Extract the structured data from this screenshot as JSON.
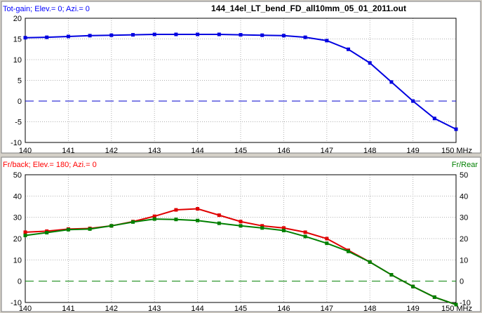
{
  "window": {
    "file_title": "144_14el_LT_bend_FD_all10mm_05_01_2011.out"
  },
  "chart_data": [
    {
      "type": "line",
      "title": "144_14el_LT_bend_FD_all10mm_05_01_2011.out",
      "ylabel": "Tot-gain; Elev.= 0; Azi.= 0",
      "x_unit_label": "150 MHz",
      "xlim": [
        140,
        150
      ],
      "ylim": [
        -10,
        20
      ],
      "x_ticks": [
        "140",
        "141",
        "142",
        "143",
        "144",
        "145",
        "146",
        "147",
        "148",
        "149"
      ],
      "y_ticks": [
        "20",
        "15",
        "10",
        "5",
        "0",
        "-5",
        "-10"
      ],
      "grid": true,
      "zero_line": true,
      "colors": {
        "series": "#0000e0",
        "zero_line": "#0000cc",
        "label": "#0000ff"
      },
      "series": [
        {
          "x": [
            140,
            140.5,
            141,
            141.5,
            142,
            142.5,
            143,
            143.5,
            144,
            144.5,
            145,
            145.5,
            146,
            146.5,
            147,
            147.5,
            148,
            148.5,
            149,
            149.5,
            150
          ],
          "values": [
            15.3,
            15.4,
            15.6,
            15.8,
            15.9,
            16.0,
            16.1,
            16.1,
            16.1,
            16.1,
            16.0,
            15.9,
            15.8,
            15.4,
            14.6,
            12.5,
            9.2,
            4.6,
            0.0,
            -4.2,
            -6.8
          ]
        }
      ]
    },
    {
      "type": "line",
      "ylabel": "Fr/back; Elev.= 180; Azi.= 0",
      "ylabel_right": "Fr/Rear",
      "x_unit_label": "150 MHz",
      "xlim": [
        140,
        150
      ],
      "ylim": [
        -10,
        50
      ],
      "x_ticks": [
        "140",
        "141",
        "142",
        "143",
        "144",
        "145",
        "146",
        "147",
        "148",
        "149"
      ],
      "y_ticks": [
        "50",
        "40",
        "30",
        "20",
        "10",
        "0",
        "-10"
      ],
      "y_ticks_right": [
        "50",
        "40",
        "30",
        "20",
        "10",
        "0",
        "-10"
      ],
      "grid": true,
      "zero_line": true,
      "colors": {
        "fr_back": "#e00000",
        "fr_rear": "#008000",
        "zero_line": "#008000",
        "left_label": "#ff0000",
        "right_label": "#008000"
      },
      "series": [
        {
          "key": "fr_back",
          "x": [
            140,
            140.5,
            141,
            141.5,
            142,
            142.5,
            143,
            143.5,
            144,
            144.5,
            145,
            145.5,
            146,
            146.5,
            147,
            147.5,
            148,
            148.5,
            149,
            149.5,
            150
          ],
          "values": [
            23.0,
            23.5,
            24.5,
            24.8,
            26.0,
            28.0,
            30.5,
            33.5,
            34.0,
            31.0,
            28.0,
            26.0,
            25.0,
            23.0,
            20.0,
            14.5,
            9.0,
            3.0,
            -2.5,
            -7.5,
            -11.0
          ]
        },
        {
          "key": "fr_rear",
          "x": [
            140,
            140.5,
            141,
            141.5,
            142,
            142.5,
            143,
            143.5,
            144,
            144.5,
            145,
            145.5,
            146,
            146.5,
            147,
            147.5,
            148,
            148.5,
            149,
            149.5,
            150
          ],
          "values": [
            21.5,
            22.8,
            24.2,
            24.5,
            26.0,
            27.8,
            29.2,
            29.0,
            28.5,
            27.2,
            26.0,
            25.0,
            23.8,
            21.0,
            17.8,
            14.0,
            9.0,
            3.0,
            -2.5,
            -7.5,
            -11.0
          ]
        }
      ]
    }
  ]
}
